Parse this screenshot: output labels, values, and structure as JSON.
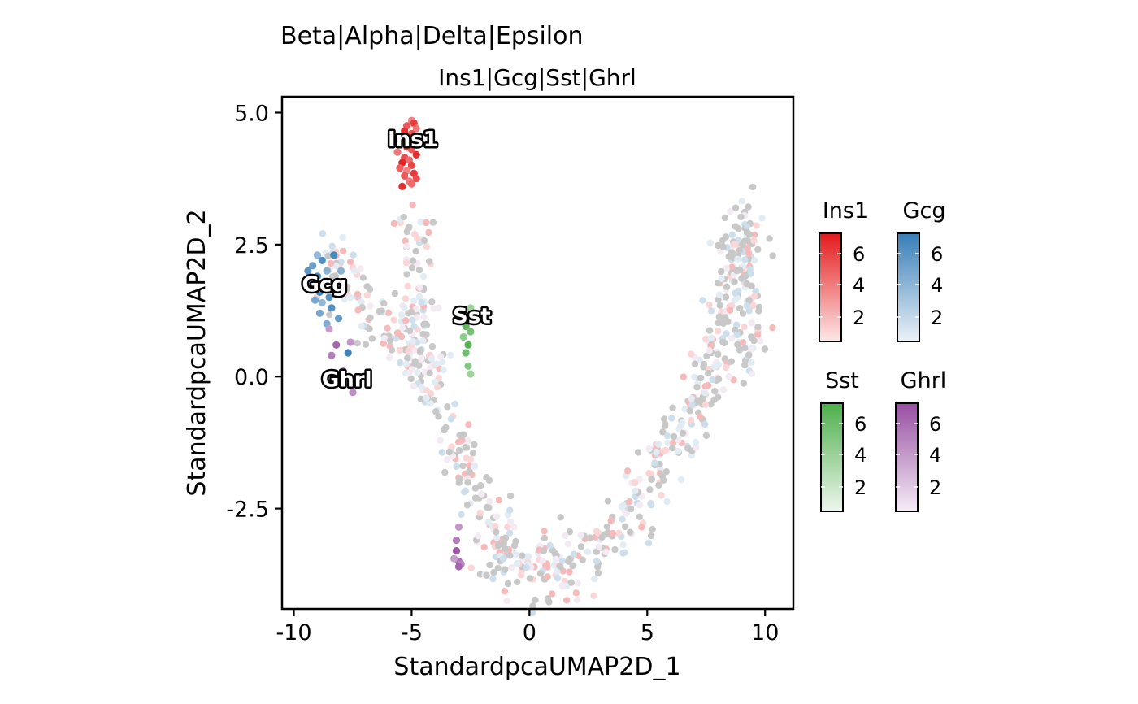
{
  "chart_data": {
    "type": "scatter",
    "title": "Beta|Alpha|Delta|Epsilon",
    "subtitle": "Ins1|Gcg|Sst|Ghrl",
    "xlabel": "StandardpcaUMAP2D_1",
    "ylabel": "StandardpcaUMAP2D_2",
    "xlim": [
      -10.5,
      11.2
    ],
    "ylim": [
      -4.4,
      5.3
    ],
    "xticks": [
      -10,
      -5,
      0,
      5,
      10
    ],
    "xtick_labels": [
      "-10",
      "-5",
      "0",
      "5",
      "10"
    ],
    "yticks": [
      -2.5,
      0.0,
      2.5,
      5.0
    ],
    "ytick_labels": [
      "-2.5",
      "0.0",
      "2.5",
      "5.0"
    ],
    "grid": false,
    "legend_position": "right",
    "colors": {
      "Ins1": "#E41A1C",
      "Gcg": "#377EB8",
      "Sst": "#4DAF4A",
      "Ghrl": "#984EA3",
      "background_cells": "#C8C8C8"
    },
    "series": [
      {
        "name": "Ins1",
        "color": "#E41A1C",
        "points": [
          [
            -5.0,
            4.85
          ],
          [
            -4.9,
            4.8
          ],
          [
            -5.2,
            4.75
          ],
          [
            -4.8,
            4.7
          ],
          [
            -5.3,
            4.65
          ],
          [
            -5.0,
            4.6
          ],
          [
            -5.4,
            4.55
          ],
          [
            -4.7,
            4.55
          ],
          [
            -5.1,
            4.5
          ],
          [
            -5.5,
            4.45
          ],
          [
            -4.9,
            4.4
          ],
          [
            -5.2,
            4.35
          ],
          [
            -5.0,
            4.3
          ],
          [
            -5.6,
            4.25
          ],
          [
            -4.8,
            4.2
          ],
          [
            -5.3,
            4.15
          ],
          [
            -5.1,
            4.1
          ],
          [
            -5.4,
            4.05
          ],
          [
            -5.0,
            4.0
          ],
          [
            -5.5,
            3.95
          ],
          [
            -5.2,
            3.9
          ],
          [
            -4.9,
            3.85
          ],
          [
            -5.3,
            3.8
          ],
          [
            -5.1,
            3.7
          ],
          [
            -5.4,
            3.6
          ],
          [
            -4.8,
            3.75
          ],
          [
            -5.0,
            3.65
          ]
        ],
        "legend_ticks": [
          2,
          4,
          6
        ]
      },
      {
        "name": "Gcg",
        "color": "#377EB8",
        "points": [
          [
            -9.0,
            2.3
          ],
          [
            -8.8,
            2.2
          ],
          [
            -9.2,
            2.1
          ],
          [
            -8.6,
            2.0
          ],
          [
            -9.0,
            1.9
          ],
          [
            -8.7,
            1.8
          ],
          [
            -9.3,
            1.7
          ],
          [
            -8.9,
            1.6
          ],
          [
            -8.5,
            1.5
          ],
          [
            -9.1,
            1.45
          ],
          [
            -8.8,
            1.4
          ],
          [
            -8.4,
            1.3
          ],
          [
            -8.2,
            1.7
          ],
          [
            -8.0,
            2.0
          ],
          [
            -8.3,
            2.3
          ],
          [
            -8.1,
            1.1
          ],
          [
            -8.6,
            1.0
          ],
          [
            -7.7,
            0.45
          ],
          [
            -9.4,
            2.0
          ],
          [
            -8.9,
            1.2
          ]
        ],
        "legend_ticks": [
          2,
          4,
          6
        ]
      },
      {
        "name": "Sst",
        "color": "#4DAF4A",
        "points": [
          [
            -2.5,
            1.3
          ],
          [
            -2.3,
            1.2
          ],
          [
            -2.6,
            1.1
          ],
          [
            -2.4,
            1.05
          ],
          [
            -2.7,
            0.95
          ],
          [
            -2.5,
            0.85
          ],
          [
            -2.8,
            0.75
          ],
          [
            -2.6,
            0.6
          ],
          [
            -2.7,
            0.45
          ],
          [
            -2.6,
            0.2
          ],
          [
            -2.5,
            0.05
          ]
        ],
        "legend_ticks": [
          2,
          4,
          6
        ]
      },
      {
        "name": "Ghrl",
        "color": "#984EA3",
        "points": [
          [
            -8.5,
            0.9
          ],
          [
            -8.2,
            0.6
          ],
          [
            -8.4,
            0.4
          ],
          [
            -7.6,
            0.65
          ],
          [
            -7.9,
            0.1
          ],
          [
            -8.0,
            -0.05
          ],
          [
            -7.5,
            -0.3
          ],
          [
            -3.1,
            -3.3
          ],
          [
            -3.0,
            -3.5
          ],
          [
            -2.9,
            -3.55
          ],
          [
            -3.2,
            -3.45
          ],
          [
            -3.0,
            -3.6
          ],
          [
            -3.1,
            -3.1
          ],
          [
            -3.0,
            -2.85
          ]
        ],
        "legend_ticks": [
          2,
          4,
          6
        ]
      }
    ],
    "annotations": [
      {
        "label": "Ins1",
        "x": -4.95,
        "y": 4.5
      },
      {
        "label": "Gcg",
        "x": -8.7,
        "y": 1.75
      },
      {
        "label": "Sst",
        "x": -2.45,
        "y": 1.15
      },
      {
        "label": "Ghrl",
        "x": -7.75,
        "y": -0.05
      }
    ],
    "legends": [
      {
        "name": "Ins1",
        "color": "#E41A1C",
        "ticks": [
          "2",
          "4",
          "6"
        ]
      },
      {
        "name": "Gcg",
        "color": "#377EB8",
        "ticks": [
          "2",
          "4",
          "6"
        ]
      },
      {
        "name": "Sst",
        "color": "#4DAF4A",
        "ticks": [
          "2",
          "4",
          "6"
        ]
      },
      {
        "name": "Ghrl",
        "color": "#984EA3",
        "ticks": [
          "2",
          "4",
          "6"
        ]
      }
    ],
    "trajectory": {
      "description": "U-shaped manifold of background cells",
      "path": [
        [
          -5.0,
          3.0
        ],
        [
          -4.8,
          2.0
        ],
        [
          -4.5,
          1.0
        ],
        [
          -4.3,
          0.0
        ],
        [
          -3.8,
          -0.8
        ],
        [
          -3.0,
          -1.5
        ],
        [
          -2.2,
          -2.3
        ],
        [
          -1.5,
          -3.0
        ],
        [
          -0.8,
          -3.4
        ],
        [
          0.0,
          -3.6
        ],
        [
          1.0,
          -3.7
        ],
        [
          2.0,
          -3.55
        ],
        [
          3.0,
          -3.2
        ],
        [
          4.0,
          -2.7
        ],
        [
          5.0,
          -2.1
        ],
        [
          6.0,
          -1.4
        ],
        [
          7.0,
          -0.7
        ],
        [
          7.6,
          0.0
        ],
        [
          8.0,
          0.8
        ],
        [
          8.5,
          1.6
        ],
        [
          9.0,
          2.3
        ],
        [
          9.5,
          3.0
        ]
      ],
      "branch": [
        [
          -8.5,
          2.3
        ],
        [
          -8.0,
          1.8
        ],
        [
          -7.0,
          1.3
        ],
        [
          -6.0,
          1.0
        ],
        [
          -5.2,
          0.6
        ],
        [
          -4.6,
          0.2
        ]
      ],
      "right_loop": [
        [
          8.2,
          2.8
        ],
        [
          8.8,
          2.2
        ],
        [
          9.4,
          1.6
        ],
        [
          9.8,
          1.0
        ],
        [
          9.2,
          0.5
        ],
        [
          8.8,
          0.0
        ]
      ]
    }
  }
}
